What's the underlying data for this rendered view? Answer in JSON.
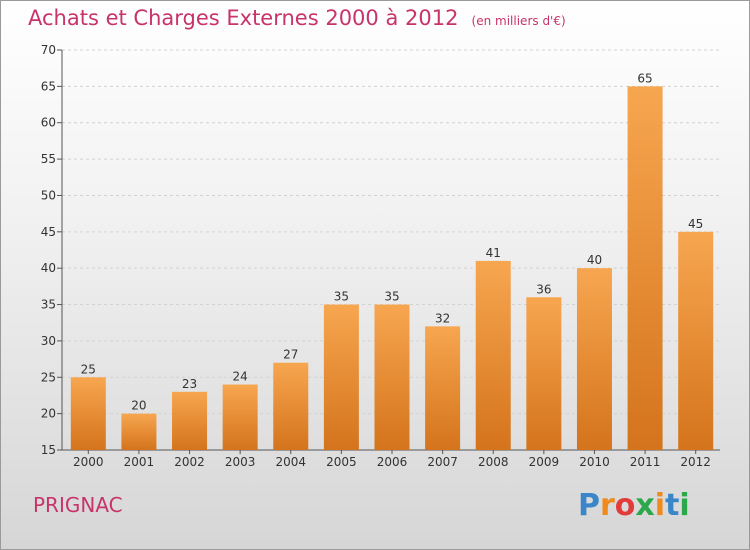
{
  "header": {
    "title": "Achats et Charges Externes 2000 à 2012",
    "subtitle": "(en milliers d'€)"
  },
  "footer": {
    "commune": "PRIGNAC",
    "logo": {
      "letters": [
        "P",
        "r",
        "o",
        "x",
        "i",
        "t",
        "i"
      ],
      "colors": [
        "#3a86c8",
        "#f08a1c",
        "#e23b3b",
        "#2ba84a",
        "#f08a1c",
        "#3a86c8",
        "#2ba84a"
      ]
    }
  },
  "chart_data": {
    "type": "bar",
    "categories": [
      "2000",
      "2001",
      "2002",
      "2003",
      "2004",
      "2005",
      "2006",
      "2007",
      "2008",
      "2009",
      "2010",
      "2011",
      "2012"
    ],
    "values": [
      25,
      20,
      23,
      24,
      27,
      35,
      35,
      32,
      41,
      36,
      40,
      65,
      45
    ],
    "title": "Achats et Charges Externes 2000 à 2012",
    "subtitle": "(en milliers d'€)",
    "xlabel": "",
    "ylabel": "",
    "ylim": [
      15,
      70
    ],
    "yticks": [
      15,
      20,
      25,
      30,
      35,
      40,
      45,
      50,
      55,
      60,
      65,
      70
    ],
    "grid": true,
    "bar_color": "#f0902c",
    "data_labels": true
  }
}
